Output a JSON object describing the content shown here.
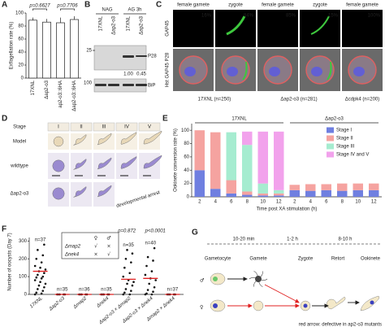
{
  "panel_labels": [
    "A",
    "B",
    "C",
    "D",
    "E",
    "F",
    "G"
  ],
  "chart_data": [
    {
      "type": "bar",
      "ylabel": "Exflagellation rate (%)",
      "categories": [
        "17XNL",
        "Δap2-o3",
        "ap2-o3::6HA",
        "Δap2-o3::6HA"
      ],
      "values": [
        89,
        86,
        85,
        90
      ],
      "errors": [
        4,
        5,
        8,
        5
      ],
      "color": "#ffffff",
      "ylim": [
        0,
        100
      ],
      "yticks": [
        0,
        20,
        40,
        60,
        80,
        100
      ],
      "annotations": [
        "p=0.6627",
        "p=0.7706"
      ]
    },
    {
      "type": "stacked-bar",
      "ylabel": "Ookinete conversion rate (%)",
      "xlabel": "Time post XA stimulation (h)",
      "groups": [
        "17XNL",
        "Δap2-o3"
      ],
      "categories": [
        "2",
        "4",
        "6",
        "8",
        "10",
        "12",
        "2",
        "4",
        "6",
        "8",
        "10",
        "12"
      ],
      "series": [
        {
          "name": "Stage I",
          "color": "#6f7fe0",
          "values": [
            40,
            12,
            5,
            3,
            2,
            2,
            10,
            9,
            10,
            9,
            10,
            10
          ]
        },
        {
          "name": "Stage II",
          "color": "#f5a3a0",
          "values": [
            60,
            85,
            20,
            5,
            3,
            3,
            8,
            10,
            9,
            11,
            10,
            10
          ]
        },
        {
          "name": "Stage III",
          "color": "#a6ecd0",
          "values": [
            0,
            0,
            72,
            70,
            15,
            5,
            0,
            0,
            0,
            0,
            0,
            0
          ]
        },
        {
          "name": "Stage IV and V",
          "color": "#f2a2ec",
          "values": [
            0,
            0,
            0,
            20,
            78,
            88,
            0,
            0,
            0,
            0,
            0,
            0
          ]
        }
      ],
      "ylim": [
        0,
        110
      ],
      "yticks": [
        0,
        20,
        40,
        60,
        80,
        100
      ],
      "legend": "upper-right"
    },
    {
      "type": "strip",
      "ylabel": "Number of oocysts (Day 7)",
      "categories": [
        "17XNL",
        "Δap2-o3",
        "Δmap2",
        "Δnek4",
        "Δap2-o3 × Δmap2",
        "Δap2-o3 × Δnek4",
        "Δmap2 × Δnek4"
      ],
      "category_colors": [
        "#222222",
        "#222222",
        "#7030a0",
        "#2060c0",
        "#222222",
        "#222222",
        "#222222"
      ],
      "points": [
        [
          0,
          5,
          10,
          20,
          30,
          40,
          50,
          60,
          70,
          80,
          90,
          95,
          100,
          110,
          120,
          130,
          140,
          150,
          160,
          180,
          200,
          220,
          250,
          280
        ],
        [
          0,
          0,
          0,
          0,
          0
        ],
        [
          0,
          0,
          0,
          0,
          0
        ],
        [
          0,
          0,
          0,
          0,
          0
        ],
        [
          0,
          0,
          10,
          20,
          30,
          50,
          60,
          70,
          80,
          100,
          120,
          150,
          180,
          200,
          230,
          250
        ],
        [
          0,
          0,
          5,
          15,
          25,
          40,
          60,
          80,
          90,
          110,
          130,
          160,
          190,
          210,
          260
        ],
        [
          0,
          0,
          0,
          0,
          0
        ]
      ],
      "means": [
        130,
        0,
        0,
        0,
        85,
        90,
        0
      ],
      "point_color": "#111111",
      "mean_color": "#e02020",
      "n_labels": [
        "n=37",
        "n=35",
        "n=36",
        "n=35",
        "n=35",
        "n=40",
        "n=37"
      ],
      "p_labels": [
        "p=0.872",
        "p<0.0001"
      ],
      "legend": {
        "sexes": [
          "♀",
          "♂"
        ],
        "rows": [
          {
            "name": "Δmap2",
            "color": "#7030a0",
            "marks": [
              "√",
              "×"
            ]
          },
          {
            "name": "Δnek4",
            "color": "#2060c0",
            "marks": [
              "×",
              "√"
            ]
          }
        ]
      },
      "ylim": [
        0,
        320
      ],
      "yticks": [
        0,
        100,
        200,
        300
      ]
    }
  ],
  "blot": {
    "conditions": [
      "NAG",
      "AG 3h"
    ],
    "lanes": [
      "17XNL",
      "Δap2-o3",
      "17XNL",
      "Δap2-o3"
    ],
    "markers": [
      "25",
      "100"
    ],
    "proteins": [
      "P28",
      "BiP"
    ],
    "ratios": [
      "1.00",
      "0.45"
    ]
  },
  "imaging": {
    "columns": [
      "female gamete",
      "zygote",
      "female gamete",
      "zygote",
      "female gamete"
    ],
    "percents": [
      "16%",
      "84%",
      "85%",
      "15%",
      "100%"
    ],
    "channels": [
      "GAP45",
      "Hst GAP45 P28"
    ],
    "strains": [
      "17XNL (n=250)",
      "Δap2-o3 (n=281)",
      "Δcdpk4 (n=200)"
    ]
  },
  "stages": {
    "header": "Stage",
    "stages": [
      "I",
      "II",
      "III",
      "IV",
      "V"
    ],
    "rows": [
      "Model",
      "wildtype",
      "Δap2-o3"
    ],
    "arrest": "developmental arrest"
  },
  "diagram": {
    "times": [
      "10-20 min",
      "1-2 h",
      "8-10 h"
    ],
    "steps": [
      "Gametocyte",
      "Gamete",
      "Zygote",
      "Retort",
      "Ookinete"
    ],
    "sexes": [
      "♂",
      "♀"
    ],
    "note": "red arrow: defective in ap2-o3 mutants"
  }
}
